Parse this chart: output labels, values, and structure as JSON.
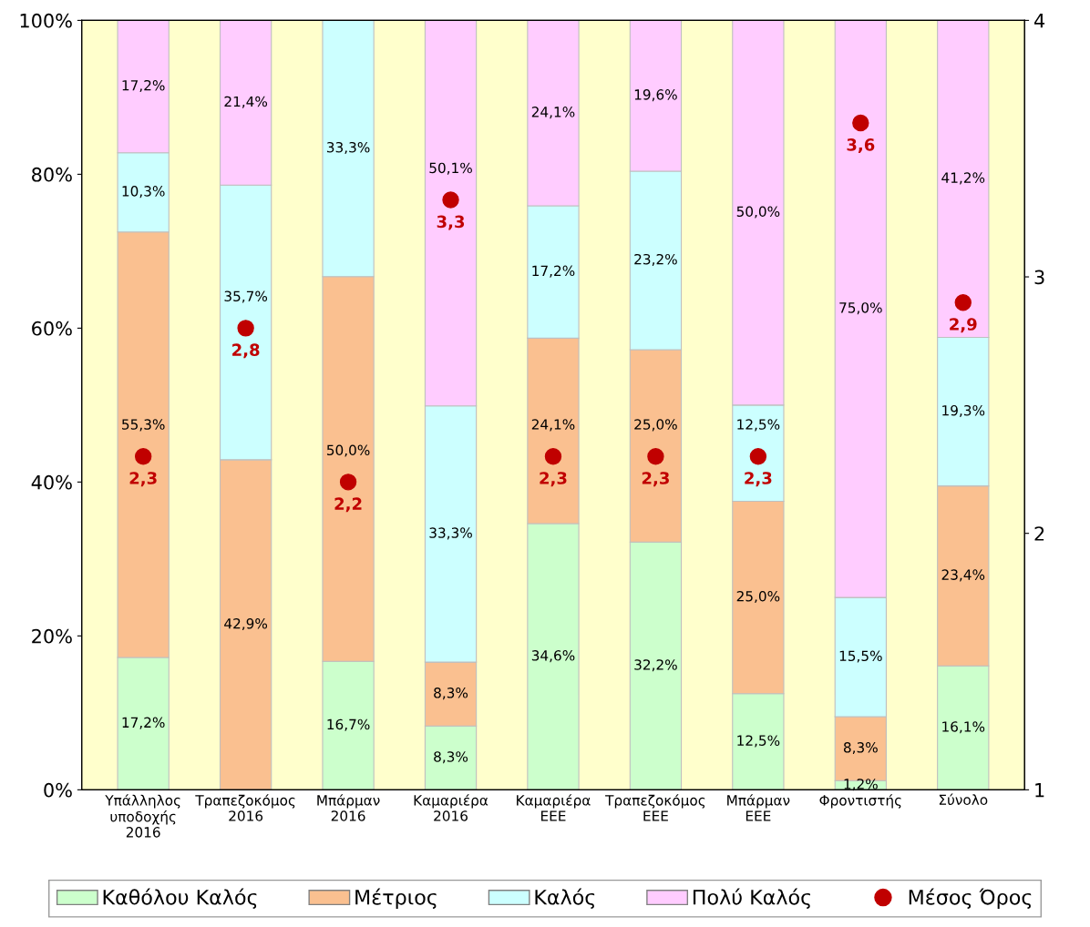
{
  "chart_data": {
    "type": "bar",
    "stacked": true,
    "categories": [
      "Υπάλληλος\nυποδοχής\n2016",
      "Τραπεζοκόμος\n2016",
      "Μπάρμαν\n2016",
      "Καμαριέρα\n2016",
      "Καμαριέρα\nΕΕΕ",
      "Τραπεζοκόμος\nΕΕΕ",
      "Μπάρμαν\nΕΕΕ",
      "Φροντιστής",
      "Σύνολο"
    ],
    "series": [
      {
        "name": "Καθόλου Καλός",
        "color": "#ccffcc",
        "values": [
          17.2,
          0,
          16.7,
          8.3,
          34.6,
          32.2,
          12.5,
          1.2,
          16.1
        ],
        "value_labels": [
          "17,2%",
          null,
          "16,7%",
          "8,3%",
          "34,6%",
          "32,2%",
          "12,5%",
          "1,2%",
          "16,1%"
        ]
      },
      {
        "name": "Μέτριος",
        "color": "#fac090",
        "values": [
          55.3,
          42.9,
          50.0,
          8.3,
          24.1,
          25.0,
          25.0,
          8.3,
          23.4
        ],
        "value_labels": [
          "55,3%",
          "42,9%",
          "50,0%",
          "8,3%",
          "24,1%",
          "25,0%",
          "25,0%",
          "8,3%",
          "23,4%"
        ]
      },
      {
        "name": "Καλός",
        "color": "#ccffff",
        "values": [
          10.3,
          35.7,
          33.3,
          33.3,
          17.2,
          23.2,
          12.5,
          15.5,
          19.3
        ],
        "value_labels": [
          "10,3%",
          "35,7%",
          "33,3%",
          "33,3%",
          "17,2%",
          "23,2%",
          "12,5%",
          "15,5%",
          "19,3%"
        ]
      },
      {
        "name": "Πολύ Καλός",
        "color": "#ffccff",
        "values": [
          17.2,
          21.4,
          0,
          50.1,
          24.1,
          19.6,
          50.0,
          75.0,
          41.2
        ],
        "value_labels": [
          "17,2%",
          "21,4%",
          null,
          "50,1%",
          "24,1%",
          "19,6%",
          "50,0%",
          "75,0%",
          "41,2%"
        ]
      },
      {
        "name": "Μέσος Όρος",
        "type": "scatter",
        "axis": "y2",
        "marker": "circle",
        "color": "#c00000",
        "values": [
          2.3,
          2.8,
          2.2,
          3.3,
          2.3,
          2.3,
          2.3,
          3.6,
          2.9
        ],
        "value_labels": [
          "2,3",
          "2,8",
          "2,2",
          "3,3",
          "2,3",
          "2,3",
          "2,3",
          "3,6",
          "2,9"
        ]
      }
    ],
    "ylim": [
      0,
      100
    ],
    "yticks": [
      {
        "value": 0,
        "label": "0%"
      },
      {
        "value": 20,
        "label": "20%"
      },
      {
        "value": 40,
        "label": "40%"
      },
      {
        "value": 60,
        "label": "60%"
      },
      {
        "value": 80,
        "label": "80%"
      },
      {
        "value": 100,
        "label": "100%"
      }
    ],
    "y2lim": [
      1,
      4
    ],
    "y2ticks": [
      1,
      2,
      3,
      4
    ],
    "grid": false,
    "legend": "bottom"
  }
}
